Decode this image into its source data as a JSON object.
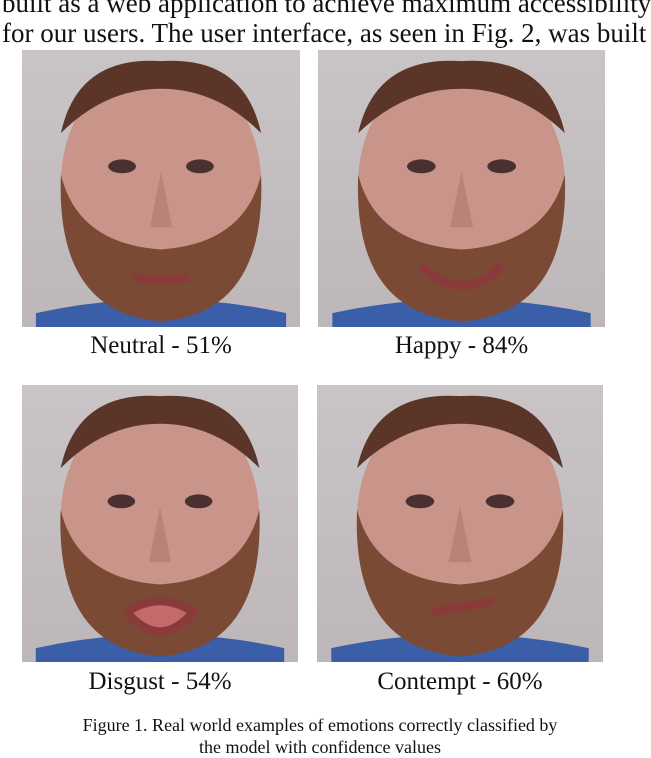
{
  "body_text": {
    "line1": "built as a web application to achieve maximum accessibility",
    "line2": "for our users. The user interface, as seen in Fig. 2,  was built"
  },
  "figure": {
    "panels": [
      {
        "emotion": "Neutral",
        "confidence_pct": 51,
        "label": "Neutral - 51%"
      },
      {
        "emotion": "Happy",
        "confidence_pct": 84,
        "label": "Happy - 84%"
      },
      {
        "emotion": "Disgust",
        "confidence_pct": 54,
        "label": "Disgust - 54%"
      },
      {
        "emotion": "Contempt",
        "confidence_pct": 60,
        "label": "Contempt - 60%"
      }
    ],
    "caption_line1": "Figure 1.    Real world examples of emotions correctly classified by",
    "caption_line2": "the model with confidence values"
  }
}
